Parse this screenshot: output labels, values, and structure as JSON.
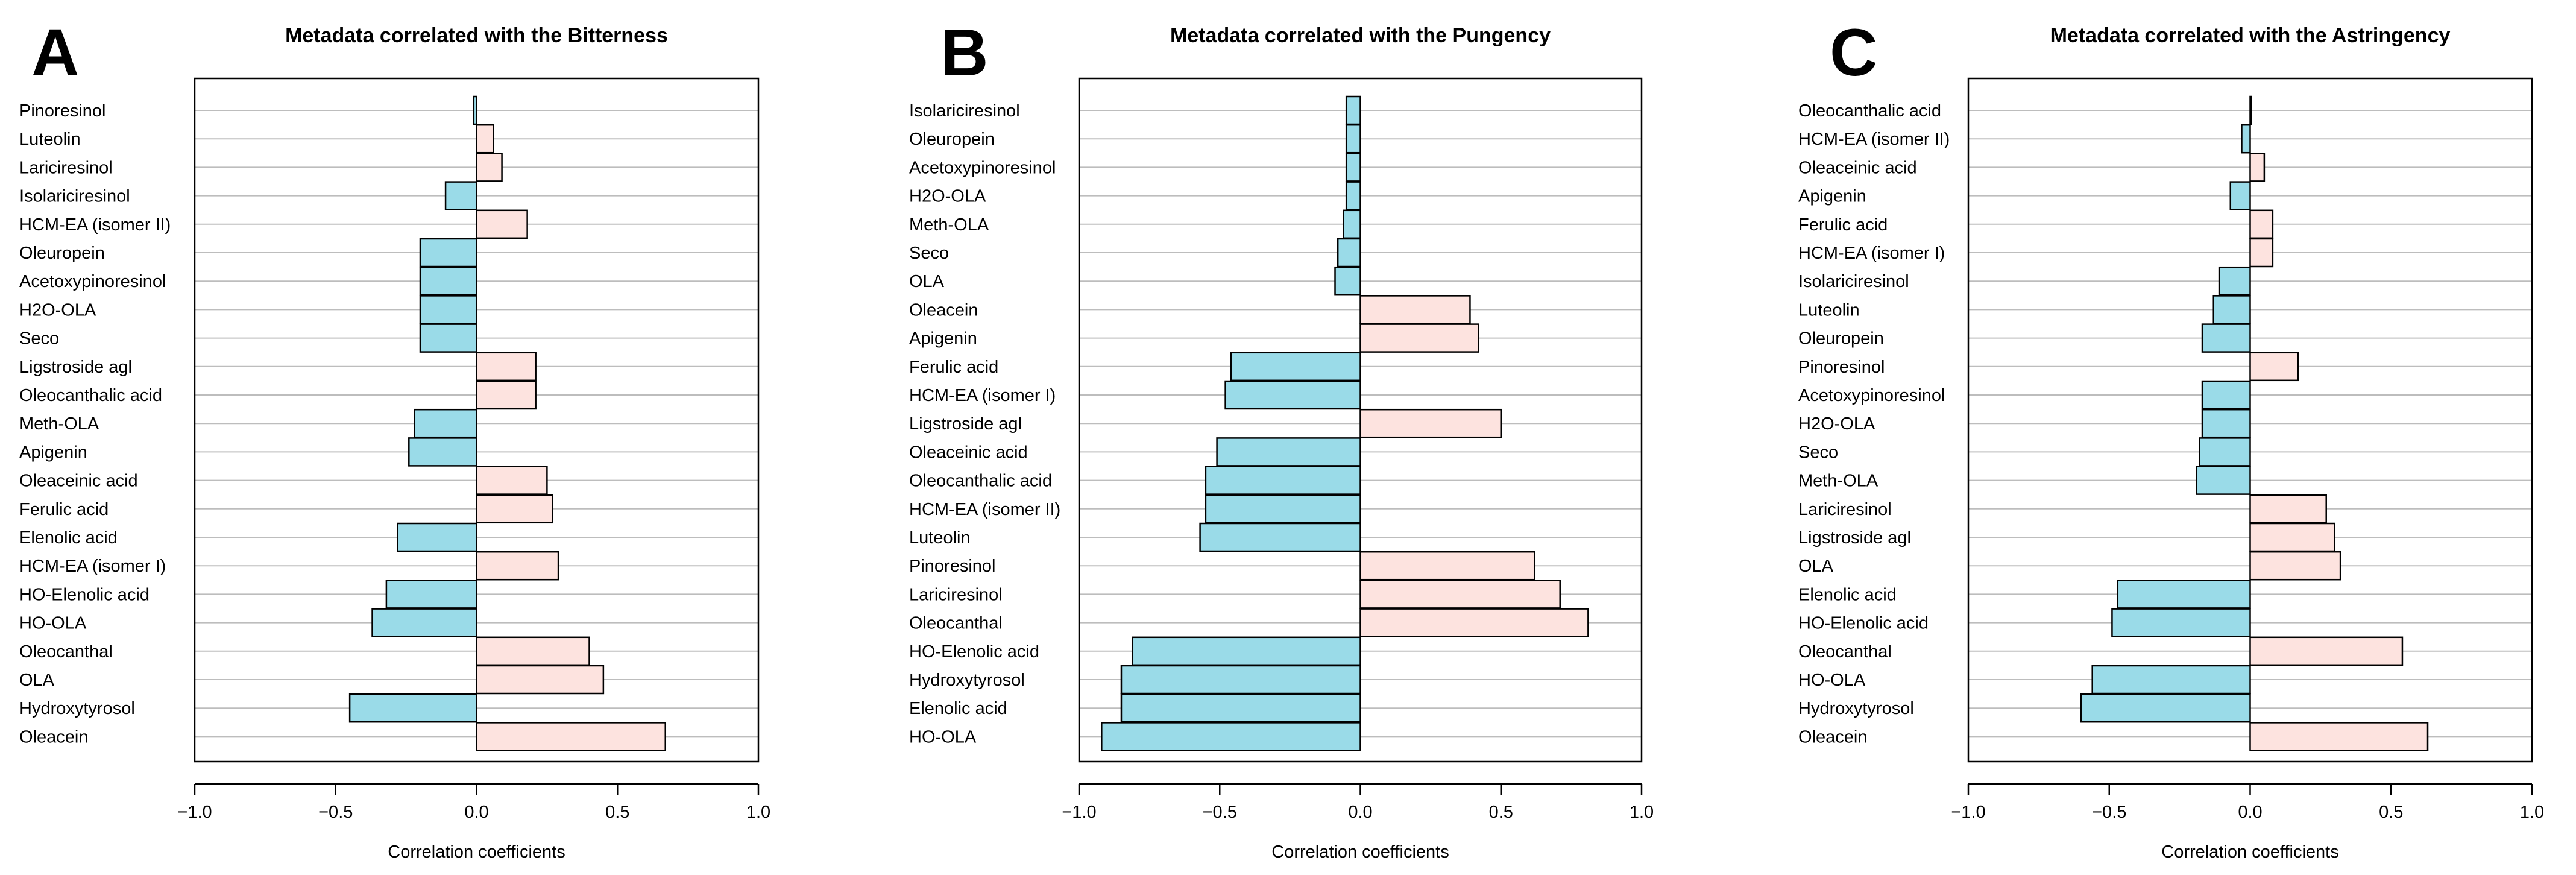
{
  "colors": {
    "negative_fill": "#9adbe8",
    "positive_fill": "#fde3df",
    "bar_stroke": "#000000",
    "gridline": "#bdbdbd",
    "frame": "#000000"
  },
  "chart_data": [
    {
      "type": "bar",
      "orientation": "horizontal",
      "panel_label": "A",
      "title": "Metadata correlated with the Bitterness",
      "xlabel": "Correlation coefficients",
      "ylabel": "",
      "xlim": [
        -1.0,
        1.0
      ],
      "xticks": [
        "−1.0",
        "−0.5",
        "0.0",
        "0.5",
        "1.0"
      ],
      "xtick_values": [
        -1.0,
        -0.5,
        0.0,
        0.5,
        1.0
      ],
      "grid": "horizontal",
      "categories": [
        "Pinoresinol",
        "Luteolin",
        "Lariciresinol",
        "Isolariciresinol",
        "HCM-EA (isomer II)",
        "Oleuropein",
        "Acetoxypinoresinol",
        "H2O-OLA",
        "Seco",
        "Ligstroside agl",
        "Oleocanthalic acid",
        "Meth-OLA",
        "Apigenin",
        "Oleaceinic acid",
        "Ferulic acid",
        "Elenolic acid",
        "HCM-EA (isomer I)",
        "HO-Elenolic acid",
        "HO-OLA",
        "Oleocanthal",
        "OLA",
        "Hydroxytyrosol",
        "Oleacein"
      ],
      "values": [
        -0.01,
        0.06,
        0.09,
        -0.11,
        0.18,
        -0.2,
        -0.2,
        -0.2,
        -0.2,
        0.21,
        0.21,
        -0.22,
        -0.24,
        0.25,
        0.27,
        -0.28,
        0.29,
        -0.32,
        -0.37,
        0.4,
        0.45,
        -0.45,
        0.67
      ]
    },
    {
      "type": "bar",
      "orientation": "horizontal",
      "panel_label": "B",
      "title": "Metadata correlated with the Pungency",
      "xlabel": "Correlation coefficients",
      "ylabel": "",
      "xlim": [
        -1.0,
        1.0
      ],
      "xticks": [
        "−1.0",
        "−0.5",
        "0.0",
        "0.5",
        "1.0"
      ],
      "xtick_values": [
        -1.0,
        -0.5,
        0.0,
        0.5,
        1.0
      ],
      "grid": "horizontal",
      "categories": [
        "Isolariciresinol",
        "Oleuropein",
        "Acetoxypinoresinol",
        "H2O-OLA",
        "Meth-OLA",
        "Seco",
        "OLA",
        "Oleacein",
        "Apigenin",
        "Ferulic acid",
        "HCM-EA (isomer I)",
        "Ligstroside agl",
        "Oleaceinic acid",
        "Oleocanthalic acid",
        "HCM-EA (isomer II)",
        "Luteolin",
        "Pinoresinol",
        "Lariciresinol",
        "Oleocanthal",
        "HO-Elenolic acid",
        "Hydroxytyrosol",
        "Elenolic acid",
        "HO-OLA"
      ],
      "values": [
        -0.05,
        -0.05,
        -0.05,
        -0.05,
        -0.06,
        -0.08,
        -0.09,
        0.39,
        0.42,
        -0.46,
        -0.48,
        0.5,
        -0.51,
        -0.55,
        -0.55,
        -0.57,
        0.62,
        0.71,
        0.81,
        -0.81,
        -0.85,
        -0.85,
        -0.92
      ]
    },
    {
      "type": "bar",
      "orientation": "horizontal",
      "panel_label": "C",
      "title": "Metadata correlated with the Astringency",
      "xlabel": "Correlation coefficients",
      "ylabel": "",
      "xlim": [
        -1.0,
        1.0
      ],
      "xticks": [
        "−1.0",
        "−0.5",
        "0.0",
        "0.5",
        "1.0"
      ],
      "xtick_values": [
        -1.0,
        -0.5,
        0.0,
        0.5,
        1.0
      ],
      "grid": "horizontal",
      "categories": [
        "Oleocanthalic acid",
        "HCM-EA (isomer II)",
        "Oleaceinic acid",
        "Apigenin",
        "Ferulic acid",
        "HCM-EA (isomer I)",
        "Isolariciresinol",
        "Luteolin",
        "Oleuropein",
        "Pinoresinol",
        "Acetoxypinoresinol",
        "H2O-OLA",
        "Seco",
        "Meth-OLA",
        "Lariciresinol",
        "Ligstroside agl",
        "OLA",
        "Elenolic acid",
        "HO-Elenolic acid",
        "Oleocanthal",
        "HO-OLA",
        "Hydroxytyrosol",
        "Oleacein"
      ],
      "values": [
        0.0,
        -0.03,
        0.05,
        -0.07,
        0.08,
        0.08,
        -0.11,
        -0.13,
        -0.17,
        0.17,
        -0.17,
        -0.17,
        -0.18,
        -0.19,
        0.27,
        0.3,
        0.32,
        -0.47,
        -0.49,
        0.54,
        -0.56,
        -0.6,
        0.63
      ]
    }
  ]
}
